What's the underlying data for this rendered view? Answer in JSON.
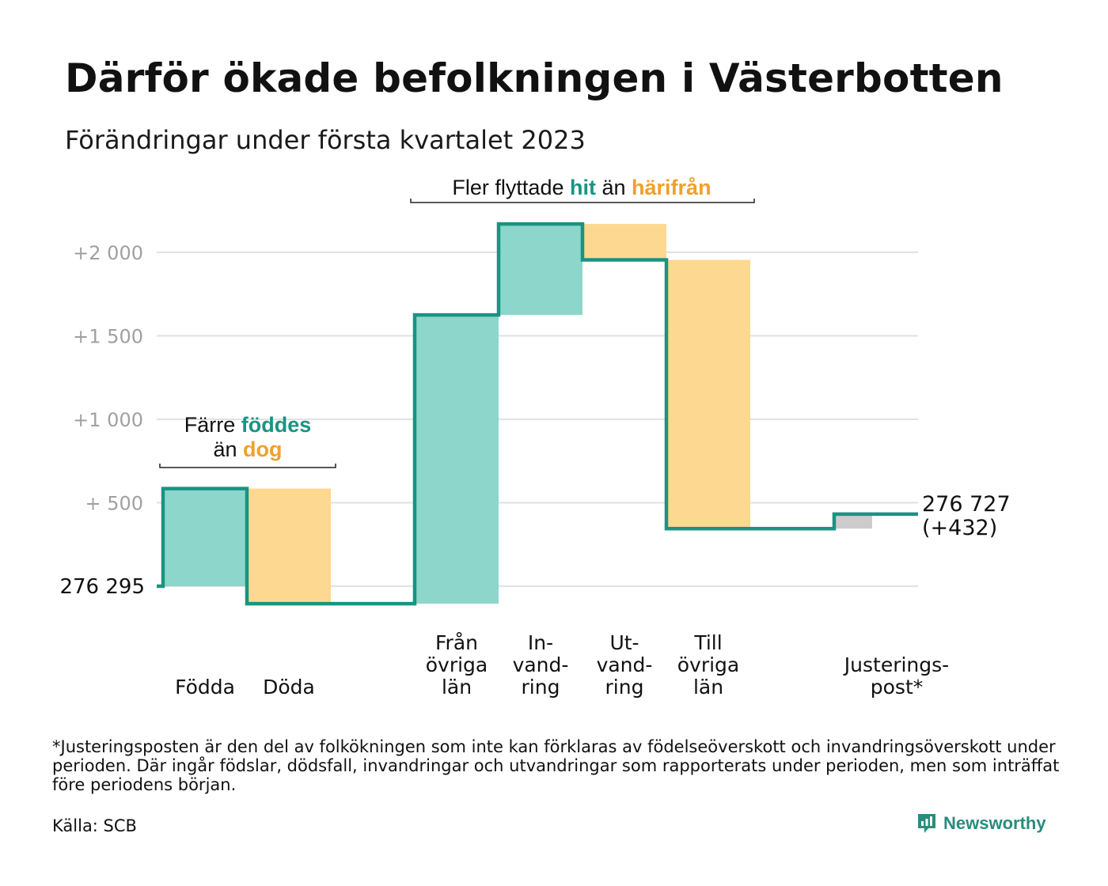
{
  "title": "Därför ökade befolkningen i Västerbotten",
  "subtitle": "Förändringar under första kvartalet 2023",
  "chart_data": {
    "type": "waterfall",
    "start_label": "276 295",
    "end_label": [
      "276 727",
      "(+432)"
    ],
    "ylim": [
      -120,
      2320
    ],
    "ticks": [
      {
        "value": 500,
        "label": "+ 500"
      },
      {
        "value": 1000,
        "label": "+1 000"
      },
      {
        "value": 1500,
        "label": "+1 500"
      },
      {
        "value": 2000,
        "label": "+2 000"
      }
    ],
    "steps": [
      {
        "label": [
          "Födda"
        ],
        "value": 585,
        "kind": "in"
      },
      {
        "label": [
          "Döda"
        ],
        "value": -690,
        "kind": "out"
      },
      {
        "label": [],
        "value": 0,
        "kind": "gap"
      },
      {
        "label": [
          "Från",
          "övriga",
          "län"
        ],
        "value": 1730,
        "kind": "in"
      },
      {
        "label": [
          "In-",
          "vand-",
          "ring"
        ],
        "value": 545,
        "kind": "in"
      },
      {
        "label": [
          "Ut-",
          "vand-",
          "ring"
        ],
        "value": -215,
        "kind": "out"
      },
      {
        "label": [
          "Till",
          "övriga",
          "län"
        ],
        "value": -1610,
        "kind": "out"
      },
      {
        "label": [],
        "value": 0,
        "kind": "gap"
      },
      {
        "label": [
          "Justerings-",
          "post*"
        ],
        "value": 87,
        "kind": "adjust"
      }
    ],
    "annotations": [
      {
        "parts": [
          {
            "text": "Färre ",
            "tone": "plain"
          },
          {
            "text": "föddes",
            "tone": "in"
          }
        ],
        "parts2": [
          {
            "text": "än ",
            "tone": "plain"
          },
          {
            "text": "dog",
            "tone": "out"
          }
        ]
      },
      {
        "parts": [
          {
            "text": "Fler flyttade ",
            "tone": "plain"
          },
          {
            "text": "hit",
            "tone": "in"
          },
          {
            "text": " än ",
            "tone": "plain"
          },
          {
            "text": "härifrån",
            "tone": "out"
          }
        ]
      }
    ],
    "colors": {
      "in_fill": "#8dd6cb",
      "out_fill": "#fcd891",
      "adjust_fill": "#cccccc",
      "line": "#1a9382",
      "in_text": "#1a9382",
      "out_text": "#f0a02c",
      "grid": "#e2e2e2",
      "tick": "#a0a0a0"
    }
  },
  "footnote": "*Justeringsposten är den del av folkökningen som inte kan förklaras av födelseöverskott och invandringsöverskott under perioden. Där ingår födslar, dödsfall, invandringar och utvandringar som rapporterats under perioden, men som inträffat före periodens början.",
  "source": "Källa: SCB",
  "brand": "Newsworthy",
  "brand_icon": "newsworthy-logo-icon"
}
